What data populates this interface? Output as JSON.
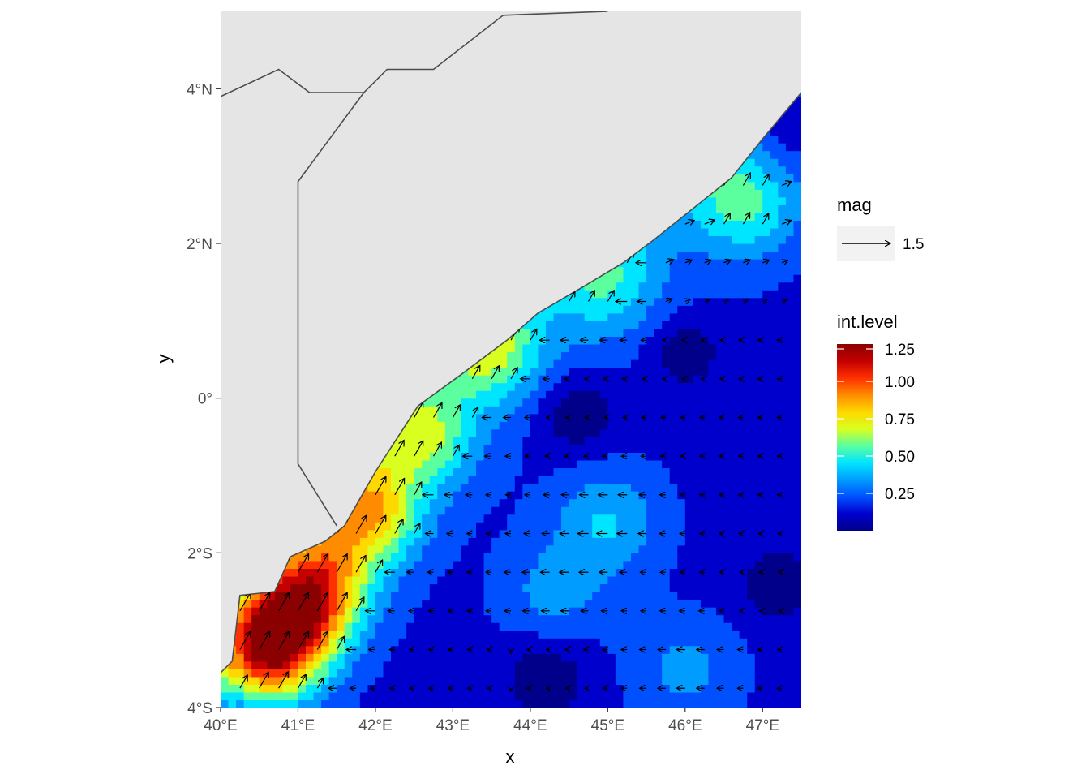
{
  "chart_data": {
    "type": "map-contour-vector",
    "xlabel": "x",
    "ylabel": "y",
    "xlim": [
      40.0,
      47.5
    ],
    "ylim": [
      -4.0,
      5.0
    ],
    "x_ticks": [
      {
        "value": 40,
        "label": "40°E"
      },
      {
        "value": 41,
        "label": "41°E"
      },
      {
        "value": 42,
        "label": "42°E"
      },
      {
        "value": 43,
        "label": "43°E"
      },
      {
        "value": 44,
        "label": "44°E"
      },
      {
        "value": 45,
        "label": "45°E"
      },
      {
        "value": 46,
        "label": "46°E"
      },
      {
        "value": 47,
        "label": "47°E"
      }
    ],
    "y_ticks": [
      {
        "value": -4,
        "label": "4°S"
      },
      {
        "value": -2,
        "label": "2°S"
      },
      {
        "value": 0,
        "label": "0°"
      },
      {
        "value": 2,
        "label": "2°N"
      },
      {
        "value": 4,
        "label": "4°N"
      }
    ],
    "land_color": "#e5e5e5",
    "border_color": "#4d4d4d",
    "coastline": [
      [
        40.0,
        -3.55
      ],
      [
        40.15,
        -3.4
      ],
      [
        40.25,
        -2.55
      ],
      [
        40.7,
        -2.5
      ],
      [
        40.9,
        -2.05
      ],
      [
        41.35,
        -1.85
      ],
      [
        41.6,
        -1.65
      ],
      [
        42.0,
        -0.95
      ],
      [
        42.55,
        -0.1
      ],
      [
        43.1,
        0.3
      ],
      [
        43.7,
        0.75
      ],
      [
        44.1,
        1.1
      ],
      [
        44.7,
        1.45
      ],
      [
        45.2,
        1.75
      ],
      [
        45.6,
        2.05
      ],
      [
        46.1,
        2.45
      ],
      [
        46.6,
        2.85
      ],
      [
        47.0,
        3.35
      ],
      [
        47.5,
        3.95
      ]
    ],
    "borders": [
      [
        [
          40.0,
          3.9
        ],
        [
          40.75,
          4.25
        ],
        [
          41.15,
          3.95
        ],
        [
          41.85,
          3.95
        ]
      ],
      [
        [
          41.5,
          -1.65
        ],
        [
          41.0,
          -0.85
        ],
        [
          41.0,
          2.8
        ],
        [
          41.85,
          3.95
        ],
        [
          42.15,
          4.25
        ],
        [
          42.75,
          4.25
        ],
        [
          43.65,
          4.95
        ],
        [
          45.0,
          5.0
        ]
      ]
    ],
    "fill_scale": {
      "name": "int.level",
      "breaks": [
        0.25,
        0.5,
        0.75,
        1.0,
        1.25
      ],
      "labels": [
        "0.25",
        "0.50",
        "0.75",
        "1.00",
        "1.25"
      ],
      "limits": [
        0.0,
        1.25
      ],
      "colors": [
        "#00008b",
        "#0000cd",
        "#0050ff",
        "#009cff",
        "#00e5ff",
        "#5cff9e",
        "#d8ff20",
        "#ffd800",
        "#ff8c00",
        "#ff3000",
        "#c40000",
        "#8b0000"
      ]
    },
    "vector_scale": {
      "name": "mag",
      "label": "1.5",
      "value": 1.5
    },
    "field": {
      "peaks": [
        {
          "x": 40.65,
          "y": -3.2,
          "v": 1.2
        },
        {
          "x": 41.2,
          "y": -2.5,
          "v": 0.95
        },
        {
          "x": 41.9,
          "y": -1.5,
          "v": 0.78
        },
        {
          "x": 42.6,
          "y": -0.5,
          "v": 0.6
        },
        {
          "x": 43.5,
          "y": 0.6,
          "v": 0.55
        },
        {
          "x": 45.0,
          "y": 1.45,
          "v": 0.42
        },
        {
          "x": 46.8,
          "y": 2.5,
          "v": 0.5
        },
        {
          "x": 45.0,
          "y": -1.6,
          "v": 0.42
        },
        {
          "x": 44.3,
          "y": -2.5,
          "v": 0.35
        },
        {
          "x": 46.0,
          "y": -3.5,
          "v": 0.35
        }
      ],
      "lows": [
        {
          "x": 44.6,
          "y": -0.2,
          "v": 0.02
        },
        {
          "x": 44.2,
          "y": -3.6,
          "v": 0.02
        },
        {
          "x": 46.0,
          "y": 0.6,
          "v": 0.05
        },
        {
          "x": 47.2,
          "y": -2.4,
          "v": 0.05
        },
        {
          "x": 47.3,
          "y": 3.6,
          "v": 0.02
        }
      ]
    }
  }
}
